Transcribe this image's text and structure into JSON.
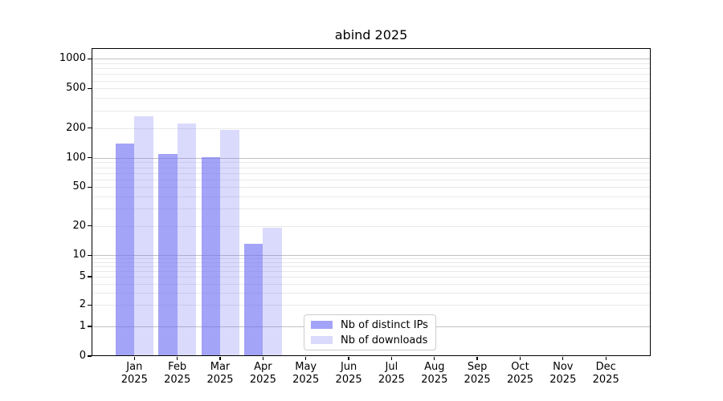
{
  "figure": {
    "background": "#ffffff"
  },
  "chart_data": {
    "type": "bar",
    "title": "abind 2025",
    "year": "2025",
    "categories": [
      "Jan",
      "Feb",
      "Mar",
      "Apr",
      "May",
      "Jun",
      "Jul",
      "Aug",
      "Sep",
      "Oct",
      "Nov",
      "Dec"
    ],
    "series": [
      {
        "name": "Nb of distinct IPs",
        "key": "distinct-ips",
        "color": "#6a6af4",
        "alpha": 0.62,
        "values": [
          140,
          110,
          102,
          13,
          null,
          null,
          null,
          null,
          null,
          null,
          null,
          null
        ]
      },
      {
        "name": "Nb of downloads",
        "key": "downloads",
        "color": "#6a6af4",
        "alpha": 0.25,
        "values": [
          265,
          220,
          190,
          19,
          null,
          null,
          null,
          null,
          null,
          null,
          null,
          null
        ]
      }
    ],
    "y_scale": "symlog",
    "y_ticks": [
      0,
      1,
      2,
      5,
      10,
      20,
      50,
      100,
      200,
      500,
      1000
    ],
    "ylim": [
      0,
      1282
    ],
    "grid": true,
    "grid_major_at": [
      1,
      10,
      100,
      1000
    ],
    "legend_position": "lower-center-inside"
  },
  "colors": {
    "bar_base": "#6a6af4",
    "grid_major": "#c2c2c2",
    "grid_minor": "#e9e9e9",
    "spine": "#000000",
    "legend_border": "#cccccc",
    "text": "#000000"
  }
}
